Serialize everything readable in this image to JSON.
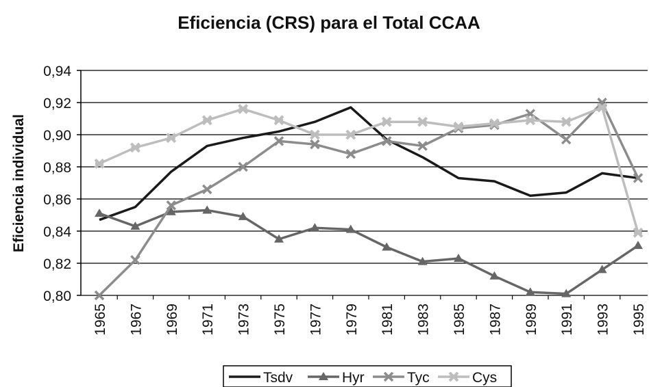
{
  "chart_data": {
    "type": "line",
    "title": "Eficiencia (CRS) para el Total CCAA",
    "y_label": "Eficiencia individual",
    "categories": [
      "1965",
      "1967",
      "1969",
      "1971",
      "1973",
      "1975",
      "1977",
      "1979",
      "1981",
      "1983",
      "1985",
      "1987",
      "1989",
      "1991",
      "1993",
      "1995"
    ],
    "series": [
      {
        "name": "Tsdv",
        "color": "#1a1a1a",
        "marker": "none",
        "values": [
          0.847,
          0.855,
          0.877,
          0.893,
          0.898,
          0.902,
          0.908,
          0.917,
          0.897,
          0.886,
          0.873,
          0.871,
          0.862,
          0.864,
          0.876,
          0.873
        ]
      },
      {
        "name": "Hyr",
        "color": "#666666",
        "marker": "triangle",
        "values": [
          0.851,
          0.843,
          0.852,
          0.853,
          0.849,
          0.835,
          0.842,
          0.841,
          0.83,
          0.821,
          0.823,
          0.812,
          0.802,
          0.801,
          0.816,
          0.831
        ]
      },
      {
        "name": "Tyc",
        "color": "#8c8c8c",
        "marker": "x",
        "values": [
          0.8,
          0.822,
          0.856,
          0.866,
          0.88,
          0.896,
          0.894,
          0.888,
          0.896,
          0.893,
          0.904,
          0.906,
          0.913,
          0.897,
          0.92,
          0.873
        ]
      },
      {
        "name": "Cys",
        "color": "#bdbdbd",
        "marker": "star",
        "values": [
          0.882,
          0.892,
          0.898,
          0.909,
          0.916,
          0.909,
          0.9,
          0.9,
          0.908,
          0.908,
          0.905,
          0.907,
          0.909,
          0.908,
          0.917,
          0.839
        ]
      }
    ],
    "ylim": [
      0.8,
      0.94
    ],
    "yticks": [
      {
        "value": 0.8,
        "label": "0,80"
      },
      {
        "value": 0.82,
        "label": "0,82"
      },
      {
        "value": 0.84,
        "label": "0,84"
      },
      {
        "value": 0.86,
        "label": "0,86"
      },
      {
        "value": 0.88,
        "label": "0,88"
      },
      {
        "value": 0.9,
        "label": "0,90"
      },
      {
        "value": 0.92,
        "label": "0,92"
      },
      {
        "value": 0.94,
        "label": "0,94"
      }
    ],
    "grid": true,
    "legend": "bottom"
  }
}
